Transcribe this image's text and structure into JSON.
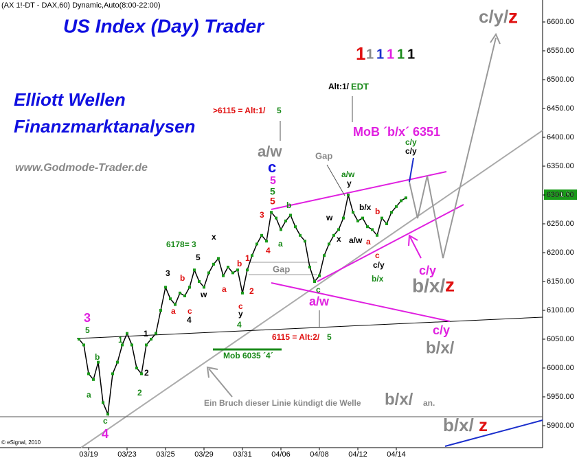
{
  "chart_data": {
    "type": "line",
    "header": "(AX 1!-DT - DAX,60) Dynamic,Auto(8:00-22:00)",
    "title": "US Index (Day) Trader",
    "subtitle_lines": [
      "Elliott Wellen",
      "Finanzmarktanalysen"
    ],
    "website": "www.Godmode-Trader.de",
    "source": "© eSignal, 2010",
    "last_price_label": "6301.50",
    "degree_markers": [
      "1",
      "1",
      "1",
      "1",
      "1",
      "1"
    ],
    "categories": [
      null,
      null,
      "03/19",
      null,
      null,
      null,
      null,
      null,
      null,
      null,
      "03/23",
      null,
      null,
      null,
      null,
      null,
      null,
      null,
      "03/25",
      null,
      null,
      null,
      null,
      null,
      null,
      null,
      "03/29",
      null,
      null,
      null,
      null,
      null,
      null,
      null,
      "03/31",
      null,
      null,
      null,
      null,
      null,
      null,
      null,
      "04/06",
      null,
      null,
      null,
      null,
      null,
      null,
      null,
      "04/08",
      null,
      null,
      null,
      null,
      null,
      null,
      null,
      "04/12",
      null,
      null,
      null,
      null,
      null,
      null,
      null,
      "04/14",
      null,
      null
    ],
    "series": [
      {
        "name": "DAX",
        "color": "#000000",
        "values": [
          6050,
          6040,
          5990,
          5980,
          6010,
          5940,
          5920,
          5990,
          6010,
          6040,
          6060,
          6040,
          6000,
          5990,
          6040,
          6050,
          6060,
          6100,
          6140,
          6120,
          6110,
          6130,
          6125,
          6140,
          6170,
          6150,
          6140,
          6165,
          6180,
          6190,
          6160,
          6175,
          6165,
          6170,
          6130,
          6170,
          6195,
          6215,
          6230,
          6220,
          6270,
          6260,
          6240,
          6255,
          6265,
          6245,
          6230,
          6220,
          6175,
          6150,
          6160,
          6195,
          6215,
          6230,
          6240,
          6260,
          6300,
          6270,
          6255,
          6260,
          6245,
          6240,
          6230,
          6260,
          6250,
          6270,
          6280,
          6290,
          6295
        ]
      }
    ],
    "ylim": [
      5900,
      6600
    ],
    "yticks": [
      {
        "value": 5900,
        "label": "5900.00"
      },
      {
        "value": 5950,
        "label": "5950.00"
      },
      {
        "value": 6000,
        "label": "6000.00"
      },
      {
        "value": 6050,
        "label": "6050.00"
      },
      {
        "value": 6100,
        "label": "6100.00"
      },
      {
        "value": 6150,
        "label": "6150.00"
      },
      {
        "value": 6200,
        "label": "6200.00"
      },
      {
        "value": 6250,
        "label": "6250.00"
      },
      {
        "value": 6300,
        "label": "6300.00"
      },
      {
        "value": 6350,
        "label": "6350.00"
      },
      {
        "value": 6400,
        "label": "6400.00"
      },
      {
        "value": 6450,
        "label": "6450.00"
      },
      {
        "value": 6500,
        "label": "6500.00"
      },
      {
        "value": 6550,
        "label": "6550.00"
      },
      {
        "value": 6600,
        "label": "6600.00"
      }
    ],
    "annotations": [
      ">6115 = Alt:1/",
      "5",
      "a/w",
      "c",
      "5",
      "5",
      "5",
      "Alt:1/",
      "EDT",
      "MoB ´b/x´ 6351",
      "Gap",
      "a/w",
      "y",
      "c/y",
      "c/y",
      "3",
      "b",
      "w",
      "b/x",
      "b",
      "4",
      "a",
      "x",
      "a/w",
      "a",
      "c",
      "c/y",
      "b/x",
      "6178= 3",
      "x",
      "5",
      "1",
      "b",
      "Gap",
      "3",
      "b",
      "w",
      "a",
      "2",
      "c",
      "y",
      "4",
      "a",
      "c",
      "4",
      "a/w",
      "c",
      "3",
      "5",
      "1",
      "1",
      "b",
      "2",
      "a",
      "2",
      "c",
      "4",
      "6115 = Alt:2/",
      "5",
      "Mob 6035 ´4´",
      "Ein Bruch dieser Linie kündigt die Welle",
      "b/x/",
      "an.",
      "c/y",
      "b/x/",
      "z",
      "c/y",
      "b/x/",
      "b/x/",
      "z",
      "c/y/",
      "z"
    ]
  }
}
